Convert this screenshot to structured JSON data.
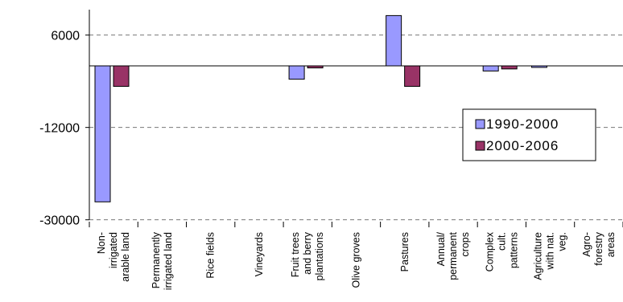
{
  "chart_data": {
    "type": "bar",
    "categories": [
      [
        "Non-",
        "irrigated",
        "arable land"
      ],
      [
        "Permanently",
        "irrigated land"
      ],
      [
        "Rice fields"
      ],
      [
        "Vineyards"
      ],
      [
        "Fruit trees",
        "and berry",
        "plantations"
      ],
      [
        "Olive groves"
      ],
      [
        "Pastures"
      ],
      [
        "Annual/",
        "permanent",
        "crops"
      ],
      [
        "Complex",
        "cult.",
        "patterns"
      ],
      [
        "Agriculture",
        "with nat.",
        "veg."
      ],
      [
        "Agro-",
        "forestry",
        "areas"
      ]
    ],
    "series": [
      {
        "name": "1990-2000",
        "color": "#9999ff",
        "values": [
          -26500,
          0,
          0,
          0,
          -2600,
          0,
          9800,
          0,
          -1000,
          -300,
          0
        ]
      },
      {
        "name": "2000-2006",
        "color": "#993366",
        "values": [
          -4000,
          0,
          0,
          0,
          -400,
          0,
          -4000,
          0,
          -600,
          0,
          0
        ]
      }
    ],
    "yticks": [
      6000,
      -12000,
      -30000
    ],
    "ytick_labels": [
      "6000",
      "-12000",
      "-30000"
    ],
    "ylim": [
      -30000,
      10000
    ],
    "grid": true,
    "legend_position": "right"
  }
}
